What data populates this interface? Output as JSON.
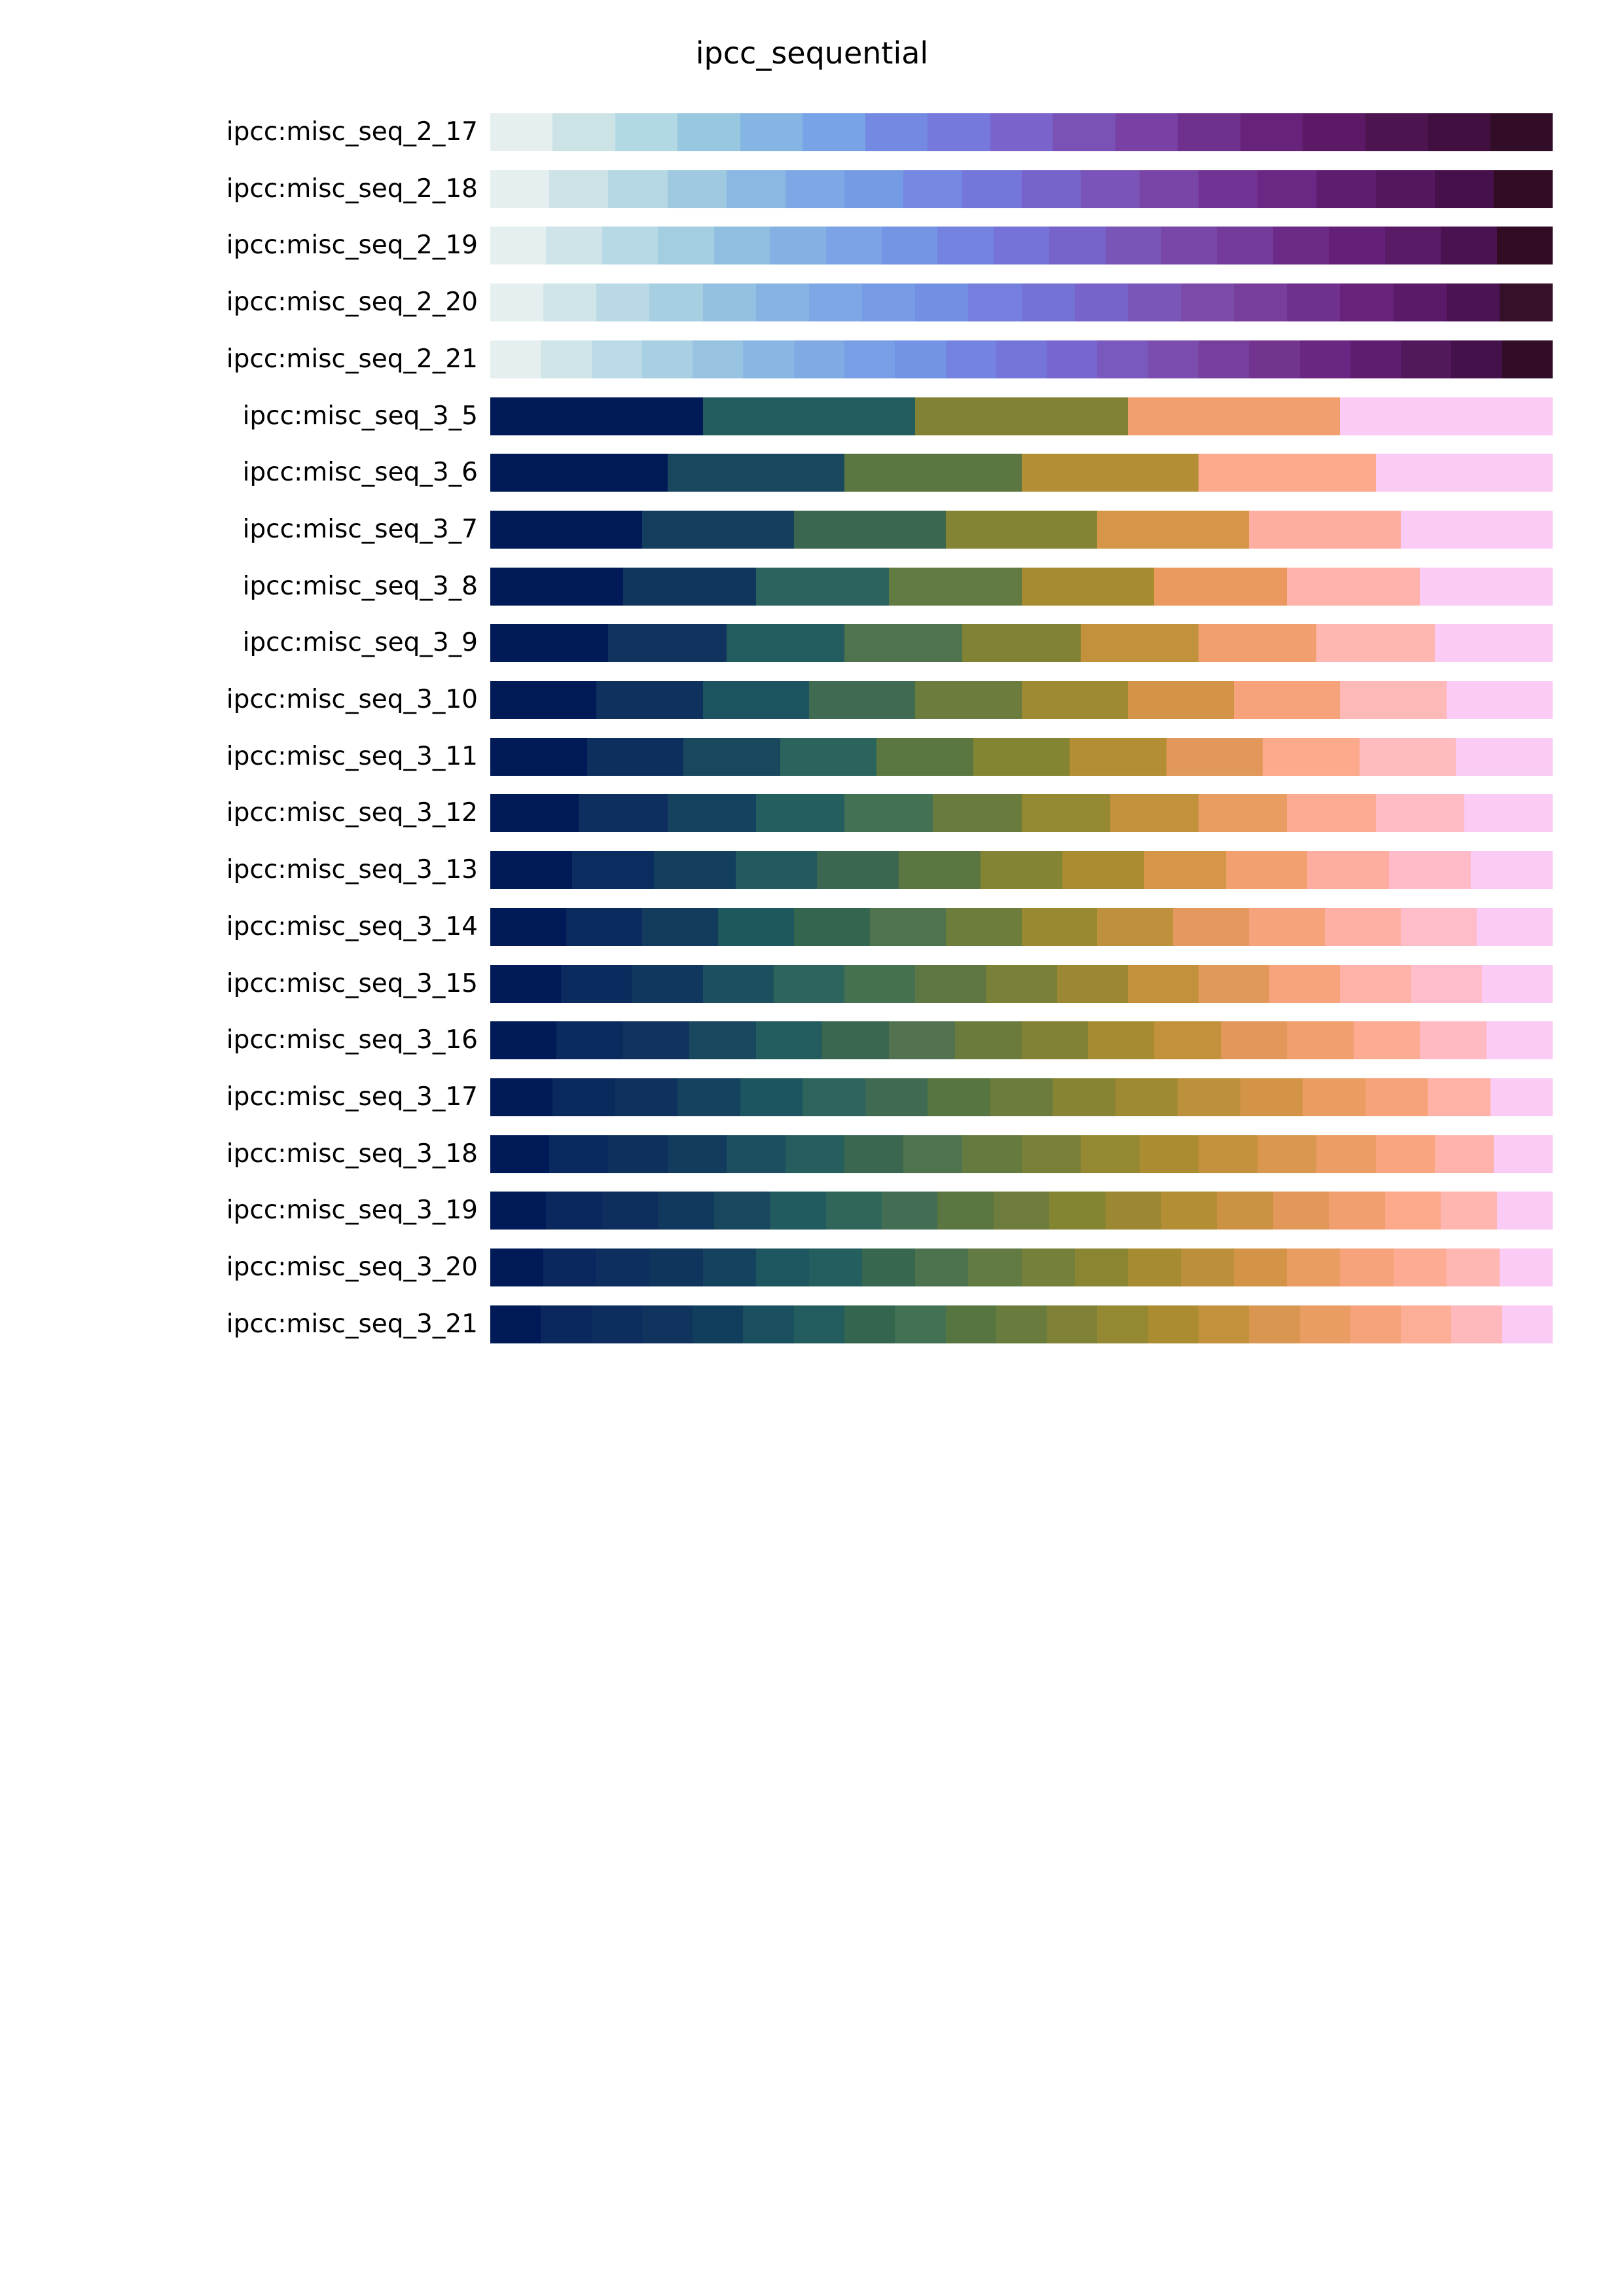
{
  "chart_data": {
    "type": "heatmap",
    "title": "ipcc_sequential",
    "palettes": [
      {
        "name": "ipcc:misc_seq_2_17",
        "colors": [
          "#e6eff0",
          "#cce3e6",
          "#b2d8e3",
          "#98c8e0",
          "#84b5e3",
          "#78a3e6",
          "#7389e2",
          "#7778dc",
          "#7a64cc",
          "#7a52b6",
          "#7841a3",
          "#70308d",
          "#67237a",
          "#5c1a66",
          "#4d1450",
          "#421040",
          "#320d28"
        ]
      },
      {
        "name": "ipcc:misc_seq_2_18",
        "colors": [
          "#e6eff0",
          "#cde3e7",
          "#b5d8e4",
          "#9ec9e0",
          "#8ab8e2",
          "#7ea8e5",
          "#769be5",
          "#7488e2",
          "#7576da",
          "#7863cb",
          "#7a54b8",
          "#7845a6",
          "#723494",
          "#6a2783",
          "#5f1d70",
          "#54175e",
          "#46104a",
          "#310c23"
        ]
      },
      {
        "name": "ipcc:misc_seq_2_19",
        "colors": [
          "#e6eff0",
          "#cee4e8",
          "#b7d9e5",
          "#a3cee2",
          "#90bee1",
          "#84b0e3",
          "#7ba3e5",
          "#7494e4",
          "#7483df",
          "#7573d8",
          "#7863ca",
          "#7a55b8",
          "#7947a8",
          "#753b9a",
          "#6c2b87",
          "#641f78",
          "#591a66",
          "#4a1251",
          "#310c23"
        ]
      },
      {
        "name": "ipcc:misc_seq_2_20",
        "colors": [
          "#e6eff0",
          "#cfe5e8",
          "#bad9e6",
          "#a6cfe2",
          "#94c1e1",
          "#86b3e2",
          "#7ea7e5",
          "#779ce5",
          "#738fe3",
          "#747fde",
          "#7572d6",
          "#7863ca",
          "#7a56b9",
          "#7a4ba9",
          "#773e9b",
          "#70308d",
          "#67237a",
          "#5a1a68",
          "#4b1354",
          "#341128"
        ]
      },
      {
        "name": "ipcc:misc_seq_2_21",
        "colors": [
          "#e6eff0",
          "#cfe5e8",
          "#bbdae7",
          "#a8d0e2",
          "#97c3e1",
          "#89b6e2",
          "#80aae4",
          "#789ee5",
          "#7393e5",
          "#7483e0",
          "#7574d8",
          "#7766cd",
          "#7a59be",
          "#7a4dae",
          "#773f9d",
          "#73348f",
          "#692682",
          "#5f1d70",
          "#52185c",
          "#44114a",
          "#320d28"
        ]
      },
      {
        "name": "ipcc:misc_seq_3_5",
        "colors": [
          "#001a57",
          "#225c5e",
          "#828234",
          "#f29f6f",
          "#f9cbf5"
        ]
      },
      {
        "name": "ipcc:misc_seq_3_6",
        "colors": [
          "#001a57",
          "#18475e",
          "#5b7641",
          "#b38e34",
          "#fca98c",
          "#f9cbf5"
        ]
      },
      {
        "name": "ipcc:misc_seq_3_7",
        "colors": [
          "#001a57",
          "#133e5e",
          "#3b6751",
          "#838534",
          "#d59647",
          "#feaea0",
          "#f9cbf5"
        ]
      },
      {
        "name": "ipcc:misc_seq_3_8",
        "colors": [
          "#001a57",
          "#10365d",
          "#2c635e",
          "#617b42",
          "#a68b31",
          "#eb995f",
          "#ffb3aa",
          "#f9cbf5"
        ]
      },
      {
        "name": "ipcc:misc_seq_3_9",
        "colors": [
          "#001a57",
          "#10345d",
          "#225c5e",
          "#4f734d",
          "#828234",
          "#c2913c",
          "#f29f6f",
          "#ffb7b2",
          "#f9cbf5"
        ]
      },
      {
        "name": "ipcc:misc_seq_3_10",
        "colors": [
          "#001a57",
          "#0f315d",
          "#1c545f",
          "#406b52",
          "#6c7c3d",
          "#9e8a32",
          "#d39448",
          "#f6a27a",
          "#ffb9b9",
          "#f9cbf5"
        ]
      },
      {
        "name": "ipcc:misc_seq_3_11",
        "colors": [
          "#001a57",
          "#0d2f5d",
          "#18475e",
          "#2b645c",
          "#5b7641",
          "#848532",
          "#b38e34",
          "#e2985a",
          "#fca98c",
          "#ffbcbf",
          "#f9cbf5"
        ]
      },
      {
        "name": "ipcc:misc_seq_3_12",
        "colors": [
          "#001a57",
          "#0d2e5e",
          "#15425e",
          "#255e5e",
          "#437153",
          "#6a7c3d",
          "#958832",
          "#c2913b",
          "#e99d63",
          "#fdac93",
          "#ffbcc4",
          "#f9cbf5"
        ]
      },
      {
        "name": "ipcc:misc_seq_3_13",
        "colors": [
          "#001a57",
          "#0b2c5e",
          "#133e5e",
          "#225a5f",
          "#3b6751",
          "#5c7641",
          "#838534",
          "#ac8c31",
          "#d59647",
          "#f2a070",
          "#feaea0",
          "#ffbcc8",
          "#f9cbf5"
        ]
      },
      {
        "name": "ipcc:misc_seq_3_14",
        "colors": [
          "#001a57",
          "#0b2b5e",
          "#123b5e",
          "#1f575f",
          "#34664f",
          "#4f734d",
          "#6d7e3c",
          "#998a32",
          "#c0913c",
          "#e49960",
          "#f6a27a",
          "#ffb0a4",
          "#ffbcc9",
          "#f9cbf5"
        ]
      },
      {
        "name": "ipcc:misc_seq_3_15",
        "colors": [
          "#001a57",
          "#0b2a5e",
          "#10375d",
          "#1c505f",
          "#2d645c",
          "#467151",
          "#5e7641",
          "#7a8037",
          "#9c8832",
          "#c3903b",
          "#e0995a",
          "#f7a37c",
          "#ffb2a8",
          "#ffbccb",
          "#f9cbf5"
        ]
      },
      {
        "name": "ipcc:misc_seq_3_16",
        "colors": [
          "#001a57",
          "#0b2a5e",
          "#10345d",
          "#18475e",
          "#225c5e",
          "#3b6751",
          "#527250",
          "#6b7b3c",
          "#828234",
          "#a68b31",
          "#c2913c",
          "#e2985a",
          "#f29f6f",
          "#fdac93",
          "#ffbac2",
          "#f9cbf5"
        ]
      },
      {
        "name": "ipcc:misc_seq_3_17",
        "colors": [
          "#001a57",
          "#0a2a5e",
          "#0f315d",
          "#15425e",
          "#1c545f",
          "#2e645c",
          "#406b52",
          "#577541",
          "#6c7c3d",
          "#878533",
          "#9e8a32",
          "#bd903c",
          "#d39448",
          "#ea9c62",
          "#f6a27a",
          "#ffb2a5",
          "#f9cbf5"
        ]
      },
      {
        "name": "ipcc:misc_seq_3_18",
        "colors": [
          "#001a57",
          "#0a295e",
          "#0e305d",
          "#123b5e",
          "#1b4f5f",
          "#265e5e",
          "#3b6751",
          "#4f734d",
          "#657a3e",
          "#7a8037",
          "#958832",
          "#ac8c31",
          "#c3903b",
          "#da9750",
          "#eb9d65",
          "#f9a680",
          "#ffb3aa",
          "#f9cbf5"
        ]
      },
      {
        "name": "ipcc:misc_seq_3_19",
        "colors": [
          "#001a57",
          "#0a285e",
          "#0e2f5d",
          "#11385d",
          "#18475e",
          "#215b5f",
          "#30655a",
          "#436e53",
          "#5b7641",
          "#6e7d3d",
          "#848532",
          "#9c8832",
          "#b38e34",
          "#cb9243",
          "#e2985a",
          "#f29f6f",
          "#fca98c",
          "#ffb5b0",
          "#f9cbf5"
        ]
      },
      {
        "name": "ipcc:misc_seq_3_20",
        "colors": [
          "#001a57",
          "#0a285e",
          "#0d2e5e",
          "#10355d",
          "#15425e",
          "#1e565f",
          "#255e5e",
          "#38674f",
          "#4d724e",
          "#617b42",
          "#75803a",
          "#8a8533",
          "#a68b31",
          "#bc8f3a",
          "#d39448",
          "#e99d63",
          "#f6a27a",
          "#fdac93",
          "#ffb7b4",
          "#f9cbf5"
        ]
      },
      {
        "name": "ipcc:misc_seq_3_21",
        "colors": [
          "#001a57",
          "#0a275e",
          "#0d2d5e",
          "#10345d",
          "#123e5e",
          "#1a4f5f",
          "#225c5e",
          "#33654f",
          "#437153",
          "#577541",
          "#6a7c3d",
          "#7e8136",
          "#958832",
          "#ab8c31",
          "#c2913b",
          "#d89650",
          "#e99d63",
          "#f6a27a",
          "#fdae97",
          "#ffb9bd",
          "#f9cbf5"
        ]
      }
    ]
  }
}
